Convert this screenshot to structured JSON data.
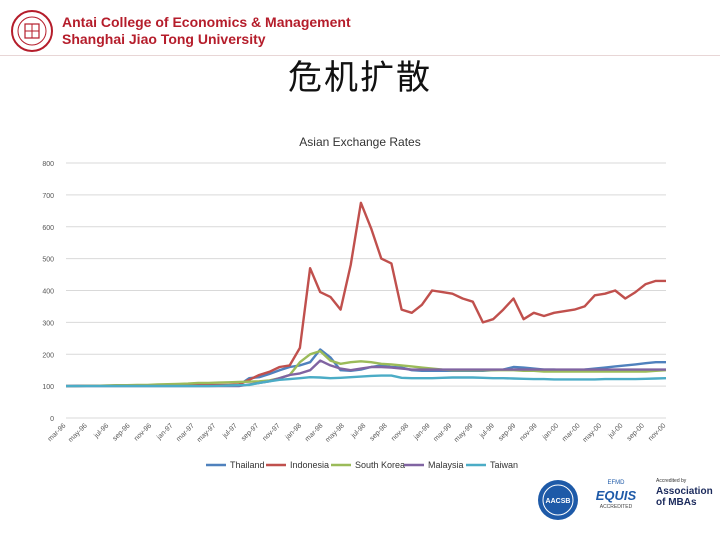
{
  "header": {
    "college_line1": "Antai College of Economics & Management",
    "college_line2": "Shanghai Jiao Tong University"
  },
  "slide_title": "危机扩散",
  "accreditation": {
    "aacsb": "AACSB",
    "efmd": "EFMD",
    "equis": "EQUIS",
    "equis_sub": "ACCREDITED",
    "amba_pre": "Accredited by",
    "amba_line1": "Association",
    "amba_line2": "of MBAs"
  },
  "colors": {
    "thailand": "#4f81bd",
    "indonesia": "#c0504d",
    "south_korea": "#9bbb59",
    "malaysia": "#8064a2",
    "taiwan": "#4bacc6",
    "brand_red": "#b51d2b"
  },
  "chart_data": {
    "type": "line",
    "title": "Asian Exchange Rates",
    "xlabel": "",
    "ylabel": "",
    "ylim": [
      0,
      800
    ],
    "yticks": [
      0,
      100,
      200,
      300,
      400,
      500,
      600,
      700,
      800
    ],
    "grid": true,
    "legend_position": "bottom",
    "x": [
      "Jan-96",
      "Feb-96",
      "Mar-96",
      "Apr-96",
      "May-96",
      "Jun-96",
      "Jul-96",
      "Aug-96",
      "Sep-96",
      "Oct-96",
      "Nov-96",
      "Dec-96",
      "Jan-97",
      "Feb-97",
      "Mar-97",
      "Apr-97",
      "May-97",
      "Jun-97",
      "Jul-97",
      "Aug-97",
      "Sep-97",
      "Oct-97",
      "Nov-97",
      "Dec-97",
      "Jan-98",
      "Feb-98",
      "Mar-98",
      "Apr-98",
      "May-98",
      "Jun-98",
      "Jul-98",
      "Aug-98",
      "Sep-98",
      "Oct-98",
      "Nov-98",
      "Dec-98",
      "Jan-99",
      "Feb-99",
      "Mar-99",
      "Apr-99",
      "May-99",
      "Jun-99",
      "Jul-99",
      "Aug-99",
      "Sep-99",
      "Oct-99",
      "Nov-99",
      "Dec-99",
      "Jan-00",
      "Feb-00",
      "Mar-00",
      "Apr-00",
      "May-00",
      "Jun-00",
      "Jul-00",
      "Aug-00",
      "Sep-00",
      "Oct-00",
      "Nov-00",
      "Dec-00"
    ],
    "tick_labels": [
      "mar-96",
      "may-96",
      "jul-96",
      "sep-96",
      "nov-96",
      "jan-97",
      "mar-97",
      "may-97",
      "jul-97",
      "sep-97",
      "nov-97",
      "jan-98",
      "mar-98",
      "may-98",
      "jul-98",
      "sep-98",
      "nov-98",
      "jan-99",
      "mar-99",
      "may-99",
      "jul-99",
      "sep-99",
      "nov-99",
      "jan-00",
      "mar-00",
      "may-00",
      "jul-00",
      "sep-00",
      "nov-00"
    ],
    "series": [
      {
        "name": "Thailand",
        "color": "#4f81bd",
        "values": [
          100,
          101,
          101,
          101,
          101,
          101,
          101,
          101,
          101,
          101,
          101,
          102,
          102,
          102,
          102,
          102,
          102,
          103,
          125,
          128,
          138,
          150,
          160,
          165,
          175,
          215,
          190,
          150,
          148,
          152,
          160,
          165,
          160,
          158,
          150,
          148,
          148,
          148,
          148,
          148,
          148,
          148,
          150,
          152,
          160,
          158,
          155,
          152,
          152,
          150,
          150,
          152,
          155,
          158,
          162,
          165,
          168,
          172,
          175,
          175
        ]
      },
      {
        "name": "Indonesia",
        "color": "#c0504d",
        "values": [
          100,
          100,
          101,
          101,
          101,
          102,
          102,
          102,
          102,
          102,
          102,
          103,
          103,
          103,
          104,
          104,
          104,
          105,
          120,
          135,
          145,
          160,
          165,
          220,
          470,
          395,
          380,
          340,
          480,
          675,
          595,
          500,
          485,
          340,
          330,
          355,
          400,
          395,
          390,
          375,
          365,
          300,
          310,
          340,
          375,
          310,
          330,
          320,
          330,
          335,
          340,
          350,
          385,
          390,
          400,
          375,
          395,
          420,
          430,
          430
        ]
      },
      {
        "name": "South Korea",
        "color": "#9bbb59",
        "values": [
          100,
          100,
          101,
          101,
          102,
          103,
          103,
          104,
          104,
          105,
          106,
          107,
          108,
          110,
          110,
          111,
          112,
          113,
          114,
          115,
          118,
          125,
          135,
          175,
          200,
          210,
          180,
          170,
          175,
          178,
          175,
          170,
          168,
          165,
          162,
          158,
          155,
          152,
          150,
          150,
          150,
          150,
          150,
          150,
          150,
          148,
          148,
          146,
          146,
          146,
          146,
          146,
          146,
          146,
          146,
          146,
          146,
          146,
          148,
          150
        ]
      },
      {
        "name": "Malaysia",
        "color": "#8064a2",
        "values": [
          100,
          100,
          100,
          100,
          100,
          100,
          100,
          100,
          100,
          100,
          100,
          100,
          100,
          100,
          100,
          100,
          100,
          100,
          105,
          110,
          115,
          125,
          135,
          140,
          150,
          180,
          165,
          155,
          150,
          155,
          160,
          160,
          158,
          155,
          152,
          152,
          152,
          152,
          152,
          152,
          152,
          152,
          152,
          152,
          152,
          152,
          152,
          152,
          152,
          152,
          152,
          152,
          152,
          152,
          152,
          152,
          152,
          152,
          152,
          152
        ]
      },
      {
        "name": "Taiwan",
        "color": "#4bacc6",
        "values": [
          100,
          100,
          100,
          100,
          100,
          100,
          100,
          100,
          100,
          100,
          100,
          100,
          100,
          100,
          100,
          101,
          102,
          103,
          104,
          110,
          115,
          120,
          122,
          125,
          128,
          127,
          125,
          126,
          128,
          130,
          132,
          133,
          133,
          126,
          125,
          125,
          125,
          126,
          127,
          127,
          127,
          126,
          125,
          125,
          124,
          123,
          122,
          122,
          121,
          121,
          121,
          121,
          121,
          122,
          122,
          122,
          122,
          123,
          124,
          125
        ]
      }
    ]
  }
}
